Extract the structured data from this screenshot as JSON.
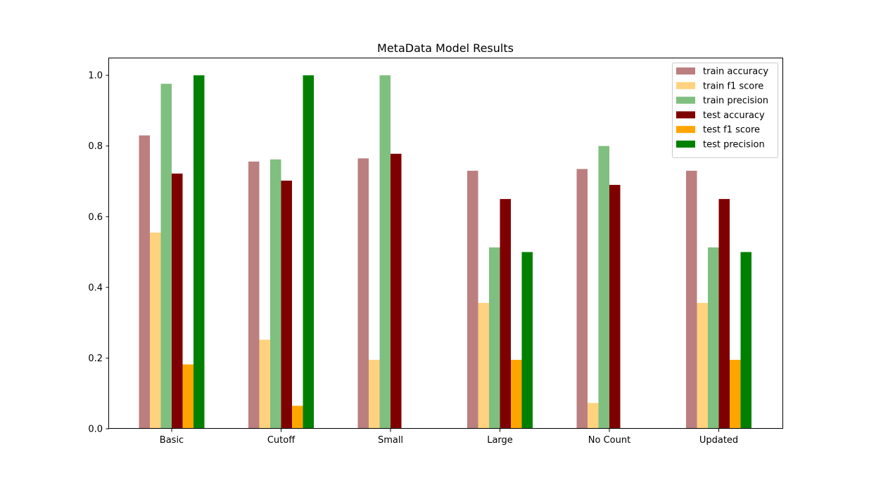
{
  "chart_data": {
    "type": "bar",
    "title": "MetaData Model Results",
    "xlabel": "",
    "ylabel": "",
    "ylim": [
      0,
      1.05
    ],
    "yticks": [
      "0.0",
      "0.2",
      "0.4",
      "0.6",
      "0.8",
      "1.0"
    ],
    "ytick_values": [
      0.0,
      0.2,
      0.4,
      0.6,
      0.8,
      1.0
    ],
    "categories": [
      "Basic",
      "Cutoff",
      "Small",
      "Large",
      "No Count",
      "Updated"
    ],
    "legend_position": "top-right",
    "grid": false,
    "series": [
      {
        "name": "train accuracy",
        "color": "#bc7f7f",
        "values": [
          0.83,
          0.756,
          0.765,
          0.73,
          0.735,
          0.73
        ]
      },
      {
        "name": "train f1 score",
        "color": "#ffd27f",
        "values": [
          0.555,
          0.252,
          0.195,
          0.356,
          0.073,
          0.356
        ]
      },
      {
        "name": "train precision",
        "color": "#7fbf7f",
        "values": [
          0.976,
          0.762,
          1.0,
          0.513,
          0.8,
          0.513
        ]
      },
      {
        "name": "test accuracy",
        "color": "#7f0000",
        "values": [
          0.722,
          0.702,
          0.778,
          0.65,
          0.69,
          0.65
        ]
      },
      {
        "name": "test f1 score",
        "color": "#ffa500",
        "values": [
          0.182,
          0.065,
          0.0,
          0.195,
          0.0,
          0.195
        ]
      },
      {
        "name": "test precision",
        "color": "#008000",
        "values": [
          1.0,
          1.0,
          0.0,
          0.5,
          0.0,
          0.5
        ]
      }
    ]
  }
}
